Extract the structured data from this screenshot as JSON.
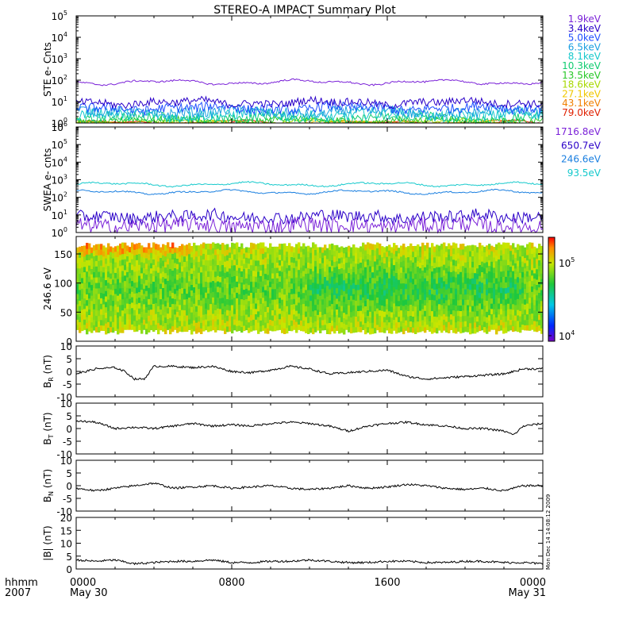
{
  "title": "STEREO-A IMPACT Summary Plot",
  "stamp": "Mon Dec 14 14:08:12 2009",
  "time_axis": {
    "corner_top": "hhmm",
    "corner_bottom": "2007",
    "ticks": [
      {
        "hour": 0,
        "label": "0000",
        "sublabel": "May 30"
      },
      {
        "hour": 8,
        "label": "0800",
        "sublabel": ""
      },
      {
        "hour": 16,
        "label": "1600",
        "sublabel": ""
      },
      {
        "hour": 24,
        "label": "0000",
        "sublabel": "May 31"
      }
    ]
  },
  "colorbar": {
    "scale": "log",
    "top_label": "10",
    "top_exp": "5",
    "bottom_label": "10",
    "bottom_exp": "4"
  },
  "chart_data": [
    {
      "type": "line",
      "id": "ste",
      "ylabel": "STE e- Cnts",
      "yscale": "log",
      "ylim": [
        1,
        100000
      ],
      "yticks": [
        {
          "base": "10",
          "exp": "0"
        },
        {
          "base": "10",
          "exp": "1"
        },
        {
          "base": "10",
          "exp": "2"
        },
        {
          "base": "10",
          "exp": "3"
        },
        {
          "base": "10",
          "exp": "4"
        },
        {
          "base": "10",
          "exp": "5"
        }
      ],
      "xlim_hours": [
        0,
        24
      ],
      "series": [
        {
          "name": "1.9keV",
          "color": "#7b22d8",
          "level": 80,
          "noise": 0.04
        },
        {
          "name": "3.4keV",
          "color": "#2a00c8",
          "level": 9,
          "noise": 0.18
        },
        {
          "name": "5.0keV",
          "color": "#1f4fff",
          "level": 5,
          "noise": 0.22
        },
        {
          "name": "6.5keV",
          "color": "#1a9fe0",
          "level": 3.2,
          "noise": 0.24
        },
        {
          "name": "8.1keV",
          "color": "#15c9cc",
          "level": 2.4,
          "noise": 0.26
        },
        {
          "name": "10.3keV",
          "color": "#10cc70",
          "level": 1.7,
          "noise": 0.22
        },
        {
          "name": "13.5keV",
          "color": "#28c828",
          "level": 1.3,
          "noise": 0.15
        },
        {
          "name": "18.6keV",
          "color": "#a8d800",
          "level": 1.1,
          "noise": 0.08
        },
        {
          "name": "27.1keV",
          "color": "#f0c800",
          "level": 1.0,
          "noise": 0.03
        },
        {
          "name": "43.1keV",
          "color": "#f08000",
          "level": 1.0,
          "noise": 0.02
        },
        {
          "name": "79.0keV",
          "color": "#e02000",
          "level": 1.0,
          "noise": 0.02
        }
      ]
    },
    {
      "type": "line",
      "id": "swea",
      "ylabel": "SWEA e- cnts",
      "yscale": "log",
      "ylim": [
        1,
        1000000
      ],
      "yticks": [
        {
          "base": "10",
          "exp": "0"
        },
        {
          "base": "10",
          "exp": "1"
        },
        {
          "base": "10",
          "exp": "2"
        },
        {
          "base": "10",
          "exp": "3"
        },
        {
          "base": "10",
          "exp": "4"
        },
        {
          "base": "10",
          "exp": "5"
        },
        {
          "base": "10",
          "exp": "6"
        }
      ],
      "xlim_hours": [
        0,
        24
      ],
      "series": [
        {
          "name": "1716.8eV",
          "color": "#7b22d8",
          "level": 2.5,
          "noise": 0.45
        },
        {
          "name": "650.7eV",
          "color": "#2a00c8",
          "level": 8,
          "noise": 0.35
        },
        {
          "name": "246.6eV",
          "color": "#1a7fe0",
          "level": 200,
          "noise": 0.04
        },
        {
          "name": "93.5eV",
          "color": "#15c9cc",
          "level": 550,
          "noise": 0.04
        }
      ]
    },
    {
      "type": "heatmap",
      "id": "pad",
      "ylabel": "246.6 eV",
      "ylim": [
        0,
        180
      ],
      "yticks": [
        0,
        50,
        100,
        150
      ],
      "xlim_hours": [
        0,
        24
      ],
      "colorscale": "log",
      "crange": [
        10000,
        200000
      ]
    },
    {
      "type": "line",
      "id": "br",
      "ylabel": "B",
      "ysub": "R",
      "yunit": "(nT)",
      "ylim": [
        -10,
        10
      ],
      "yticks": [
        -10,
        -5,
        0,
        5,
        10
      ],
      "xlim_hours": [
        0,
        24
      ],
      "series": [
        {
          "name": "",
          "color": "#000000",
          "x": [
            0,
            1,
            2,
            2.5,
            3,
            3.5,
            4,
            5,
            6,
            7,
            8,
            9,
            10,
            11,
            12,
            13,
            14,
            15,
            16,
            17,
            18,
            19,
            20,
            21,
            22,
            23,
            24
          ],
          "y": [
            -1,
            1,
            1.5,
            0,
            -3,
            -3,
            2,
            2,
            1.5,
            2,
            0,
            -0.5,
            0.5,
            2,
            1,
            -1,
            -0.5,
            0,
            0.5,
            -2,
            -3,
            -2.5,
            -2,
            -1.5,
            -1,
            1,
            1
          ]
        }
      ]
    },
    {
      "type": "line",
      "id": "bt",
      "ylabel": "B",
      "ysub": "T",
      "yunit": "(nT)",
      "ylim": [
        -10,
        10
      ],
      "yticks": [
        -10,
        -5,
        0,
        5,
        10
      ],
      "xlim_hours": [
        0,
        24
      ],
      "series": [
        {
          "name": "",
          "color": "#000000",
          "x": [
            0,
            1,
            2,
            3,
            4,
            5,
            6,
            7,
            8,
            9,
            10,
            11,
            12,
            13,
            14,
            15,
            16,
            17,
            18,
            19,
            20,
            21,
            22,
            22.5,
            23,
            24
          ],
          "y": [
            3,
            2.5,
            0,
            0.5,
            0,
            1,
            2,
            1,
            1.5,
            1,
            2,
            2.5,
            2,
            1,
            -1,
            1,
            2,
            2.5,
            1.5,
            1,
            0,
            0,
            -1,
            -2.5,
            1,
            2
          ]
        }
      ]
    },
    {
      "type": "line",
      "id": "bn",
      "ylabel": "B",
      "ysub": "N",
      "yunit": "(nT)",
      "ylim": [
        -10,
        10
      ],
      "yticks": [
        -10,
        -5,
        0,
        5,
        10
      ],
      "xlim_hours": [
        0,
        24
      ],
      "series": [
        {
          "name": "",
          "color": "#000000",
          "x": [
            0,
            1,
            2,
            3,
            4,
            5,
            6,
            7,
            8,
            9,
            10,
            11,
            12,
            13,
            14,
            15,
            16,
            17,
            18,
            19,
            20,
            21,
            22,
            23,
            24
          ],
          "y": [
            -1,
            -2,
            -1,
            0,
            1,
            -1,
            -0.5,
            0,
            -1,
            -0.5,
            0,
            -1,
            -1.5,
            -1,
            0,
            -1,
            -0.5,
            0.5,
            0,
            -1,
            -1.5,
            -1,
            -2,
            0,
            0
          ]
        }
      ]
    },
    {
      "type": "line",
      "id": "bmag",
      "ylabel": "|B|",
      "yunit": "(nT)",
      "ylim": [
        0,
        20
      ],
      "yticks": [
        0,
        5,
        10,
        15,
        20
      ],
      "xlim_hours": [
        0,
        24
      ],
      "series": [
        {
          "name": "",
          "color": "#000000",
          "x": [
            0,
            1,
            2,
            3,
            4,
            5,
            6,
            7,
            8,
            9,
            10,
            11,
            12,
            13,
            14,
            15,
            16,
            17,
            18,
            19,
            20,
            21,
            22,
            23,
            24
          ],
          "y": [
            3.5,
            3,
            3.5,
            2,
            2.5,
            3,
            3,
            3.5,
            2.5,
            2.5,
            3,
            3,
            3.5,
            3,
            2.5,
            2.5,
            3,
            3,
            2.5,
            2.5,
            3,
            3,
            2.5,
            2.5,
            2
          ]
        }
      ]
    }
  ]
}
